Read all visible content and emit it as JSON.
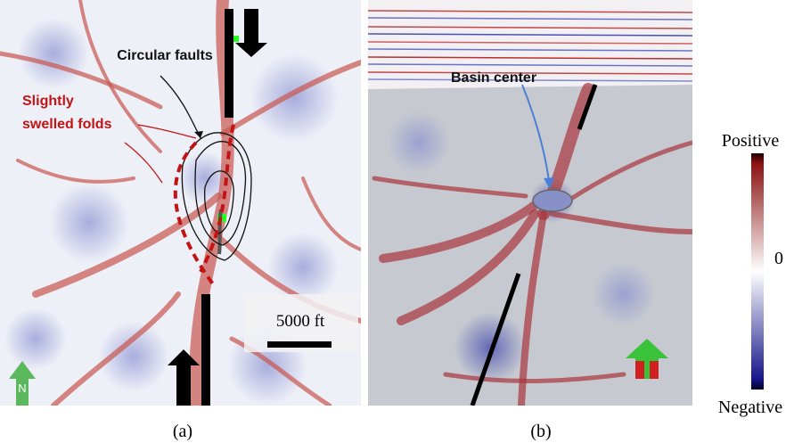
{
  "panel_a": {
    "caption": "(a)",
    "circular_faults": "Circular faults",
    "folds": [
      "Slightly",
      "swelled folds"
    ],
    "scale_bar": "5000 ft",
    "north": "N"
  },
  "panel_b": {
    "caption": "(b)",
    "basin_center": "Basin center"
  },
  "colorbar": {
    "top": "Positive",
    "middle": "0",
    "bottom": "Negative"
  }
}
